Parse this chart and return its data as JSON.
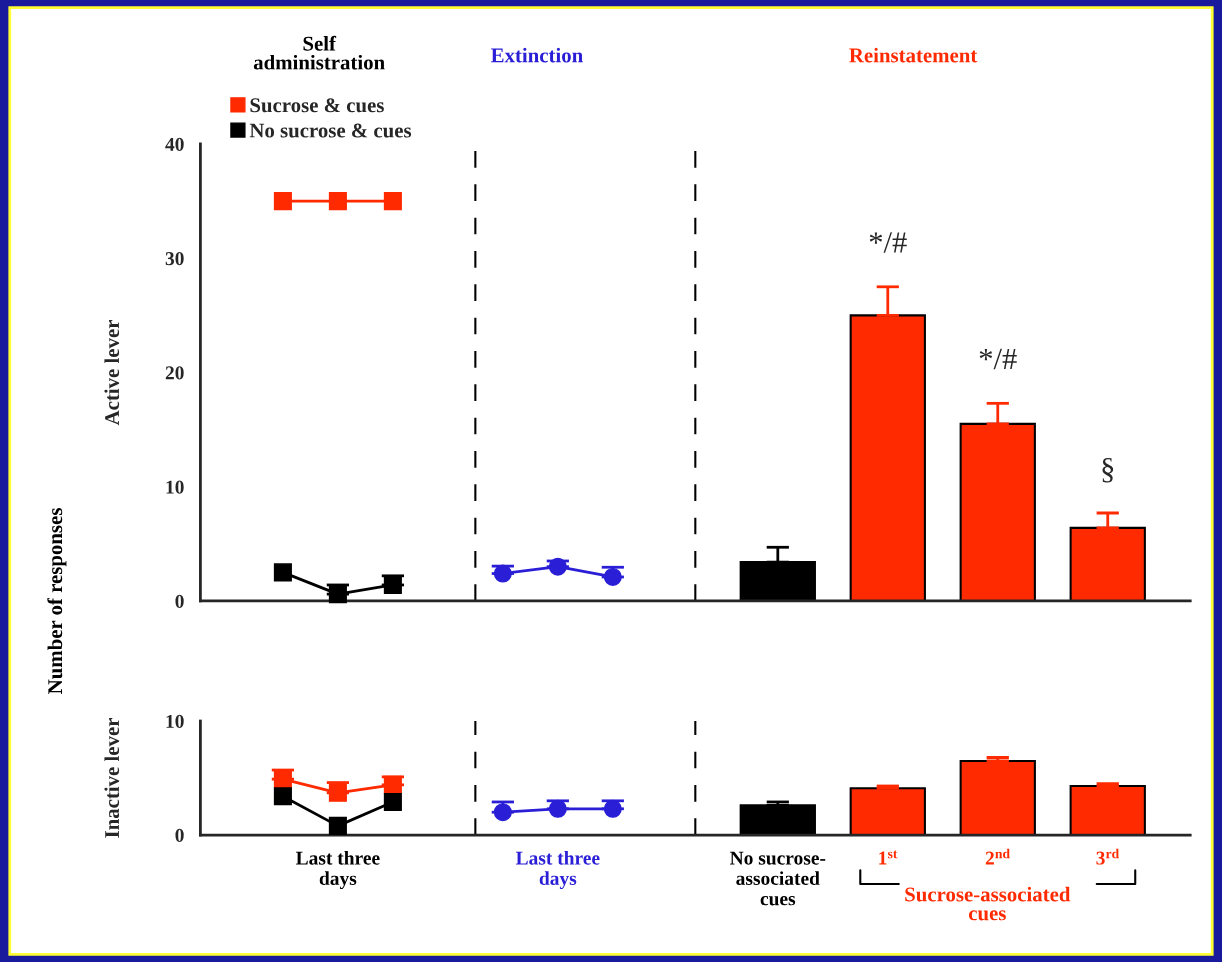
{
  "chart_data": [
    {
      "type": "line",
      "ylabel": "Active lever",
      "ylim": [
        0,
        40
      ],
      "yticks": [
        0,
        10,
        20,
        30,
        40
      ],
      "categories": [
        null,
        null,
        null,
        null,
        null,
        null,
        null,
        null,
        null,
        null,
        null,
        null,
        null,
        null,
        null,
        null,
        null,
        null
      ],
      "tick_labels": "y",
      "grid": false,
      "legend": "top left",
      "series": [
        {
          "name": "Sucrose & cues",
          "marker": "square",
          "color": "#ff2a00",
          "values": [
            null,
            35,
            35,
            35,
            null,
            null,
            null,
            null,
            null,
            null,
            null,
            null,
            null,
            null,
            null,
            null,
            null,
            null
          ]
        },
        {
          "name": "No sucrose & cues",
          "marker": "square",
          "color": "#000000",
          "values": [
            null,
            2.5,
            0.6,
            1.4,
            null,
            null,
            null,
            null,
            null,
            null,
            null,
            null,
            null,
            null,
            null,
            null,
            null,
            null
          ],
          "errors": [
            null,
            null,
            [
              0.6,
              1.4
            ],
            [
              1.4,
              2.2
            ],
            null,
            null,
            null,
            null,
            null,
            null,
            null,
            null,
            null,
            null,
            null,
            null,
            null,
            null
          ]
        },
        {
          "marker": "circle",
          "color": "#2a1fd6",
          "values": [
            null,
            null,
            null,
            null,
            null,
            2.4,
            3.0,
            2.1,
            null,
            null,
            null,
            null,
            null,
            null,
            null,
            null,
            null,
            null
          ],
          "errors": [
            null,
            null,
            null,
            null,
            null,
            [
              2.4,
              3.05
            ],
            [
              3.0,
              3.5
            ],
            [
              2.1,
              2.95
            ],
            null,
            null,
            null,
            null,
            null,
            null,
            null,
            null,
            null,
            null
          ]
        },
        {
          "type": "bar",
          "values": [
            null,
            null,
            null,
            null,
            null,
            null,
            null,
            null,
            null,
            null,
            3.4,
            null,
            25.0,
            null,
            15.5,
            null,
            6.4,
            null
          ],
          "colors": [
            null,
            null,
            null,
            null,
            null,
            null,
            null,
            null,
            null,
            null,
            "#000000",
            null,
            "#ff2a00",
            null,
            "#ff2a00",
            null,
            "#ff2a00",
            null
          ],
          "errors": [
            null,
            null,
            null,
            null,
            null,
            null,
            null,
            null,
            null,
            null,
            [
              3.4,
              4.7
            ],
            null,
            [
              25.0,
              27.5
            ],
            null,
            [
              15.5,
              17.3
            ],
            null,
            [
              6.4,
              7.7
            ],
            null
          ]
        }
      ],
      "annotations": [
        "Self administration",
        "Extinction",
        "Reinstatement",
        "Number of responses",
        {
          "text": "*/#",
          "y": 27.5
        },
        {
          "text": "*/#",
          "y": 17.3
        },
        {
          "text": "§",
          "y": 7.7
        }
      ]
    },
    {
      "type": "line",
      "ylabel": "Inactive lever",
      "ylim": [
        0,
        10
      ],
      "yticks": [
        0,
        10
      ],
      "categories": [
        null,
        null,
        "Last three days",
        null,
        null,
        null,
        "Last three days",
        null,
        null,
        null,
        "No sucrose-associated cues",
        null,
        "1$^{st}$",
        null,
        "2$^{nd}$",
        null,
        "3$^{rd}$",
        null
      ],
      "series": [
        {
          "marker": "square",
          "color": "#ff2a00",
          "values": [
            null,
            4.9,
            3.7,
            4.4,
            null,
            null,
            null,
            null,
            null,
            null,
            null,
            null,
            null,
            null,
            null,
            null,
            null,
            null
          ],
          "errors": [
            null,
            [
              4.9,
              5.7
            ],
            [
              3.7,
              4.6
            ],
            [
              4.4,
              5.1
            ],
            null,
            null,
            null,
            null,
            null,
            null,
            null,
            null,
            null,
            null,
            null,
            null,
            null,
            null
          ]
        },
        {
          "marker": "square",
          "color": "#000000",
          "values": [
            null,
            3.4,
            0.8,
            2.9,
            null,
            null,
            null,
            null,
            null,
            null,
            null,
            null,
            null,
            null,
            null,
            null,
            null,
            null
          ]
        },
        {
          "marker": "circle",
          "color": "#2a1fd6",
          "values": [
            null,
            null,
            null,
            null,
            null,
            2.0,
            2.3,
            2.3,
            null,
            null,
            null,
            null,
            null,
            null,
            null,
            null,
            null,
            null
          ],
          "errors": [
            null,
            null,
            null,
            null,
            null,
            [
              2.0,
              2.9
            ],
            [
              2.3,
              3.0
            ],
            [
              2.3,
              3.0
            ],
            null,
            null,
            null,
            null,
            null,
            null,
            null,
            null,
            null,
            null
          ]
        },
        {
          "type": "bar",
          "values": [
            null,
            null,
            null,
            null,
            null,
            null,
            null,
            null,
            null,
            null,
            2.6,
            null,
            4.1,
            null,
            6.5,
            null,
            4.3,
            null
          ],
          "colors": [
            null,
            null,
            null,
            null,
            null,
            null,
            null,
            null,
            null,
            null,
            "#000000",
            null,
            "#ff2a00",
            null,
            "#ff2a00",
            null,
            "#ff2a00",
            null
          ],
          "errors": [
            null,
            null,
            null,
            null,
            null,
            null,
            null,
            null,
            null,
            null,
            [
              2.6,
              2.9
            ],
            null,
            [
              4.1,
              4.3
            ],
            null,
            [
              6.5,
              6.8
            ],
            null,
            [
              4.3,
              4.5
            ],
            null
          ]
        }
      ],
      "annotations": [
        "Sucrose-associated cues"
      ]
    }
  ]
}
